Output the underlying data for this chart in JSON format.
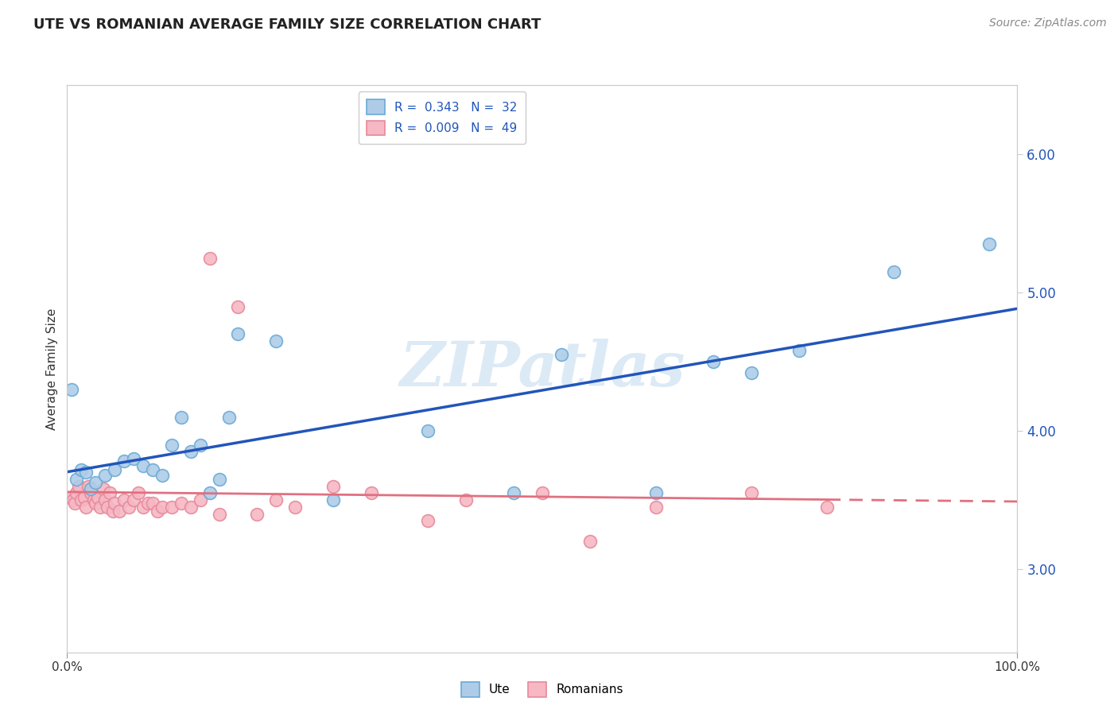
{
  "title": "UTE VS ROMANIAN AVERAGE FAMILY SIZE CORRELATION CHART",
  "source": "Source: ZipAtlas.com",
  "ylabel": "Average Family Size",
  "xlim": [
    0,
    1.0
  ],
  "ylim": [
    2.4,
    6.5
  ],
  "xticks": [
    0.0,
    1.0
  ],
  "xticklabels": [
    "0.0%",
    "100.0%"
  ],
  "yticks": [
    3.0,
    4.0,
    5.0,
    6.0
  ],
  "background_color": "#ffffff",
  "grid_color": "#cccccc",
  "watermark": "ZIPatlas",
  "ute_fill": "#aecce8",
  "ute_edge": "#6aaad4",
  "romanian_fill": "#f5b8c4",
  "romanian_edge": "#e8889a",
  "ute_line_color": "#2255bb",
  "romanian_line_color": "#e07080",
  "legend_ute_label": "R =  0.343   N =  32",
  "legend_romanian_label": "R =  0.009   N =  49",
  "legend_bottom_ute": "Ute",
  "legend_bottom_romanian": "Romanians",
  "ute_scatter_x": [
    0.005,
    0.01,
    0.015,
    0.02,
    0.025,
    0.03,
    0.04,
    0.05,
    0.06,
    0.07,
    0.08,
    0.09,
    0.1,
    0.11,
    0.12,
    0.13,
    0.14,
    0.15,
    0.16,
    0.17,
    0.18,
    0.22,
    0.28,
    0.38,
    0.47,
    0.52,
    0.62,
    0.68,
    0.72,
    0.77,
    0.87,
    0.97
  ],
  "ute_scatter_y": [
    4.3,
    3.65,
    3.72,
    3.7,
    3.58,
    3.63,
    3.68,
    3.72,
    3.78,
    3.8,
    3.75,
    3.72,
    3.68,
    3.9,
    4.1,
    3.85,
    3.9,
    3.55,
    3.65,
    4.1,
    4.7,
    4.65,
    3.5,
    4.0,
    3.55,
    4.55,
    3.55,
    4.5,
    4.42,
    4.58,
    5.15,
    5.35
  ],
  "romanian_scatter_x": [
    0.004,
    0.006,
    0.008,
    0.01,
    0.012,
    0.015,
    0.018,
    0.02,
    0.022,
    0.025,
    0.028,
    0.03,
    0.032,
    0.035,
    0.038,
    0.04,
    0.042,
    0.045,
    0.048,
    0.05,
    0.055,
    0.06,
    0.065,
    0.07,
    0.075,
    0.08,
    0.085,
    0.09,
    0.095,
    0.1,
    0.11,
    0.12,
    0.13,
    0.14,
    0.15,
    0.16,
    0.18,
    0.2,
    0.22,
    0.24,
    0.28,
    0.32,
    0.38,
    0.42,
    0.5,
    0.55,
    0.62,
    0.72,
    0.8
  ],
  "romanian_scatter_y": [
    3.52,
    3.5,
    3.48,
    3.55,
    3.6,
    3.5,
    3.52,
    3.45,
    3.6,
    3.55,
    3.5,
    3.48,
    3.52,
    3.45,
    3.58,
    3.5,
    3.45,
    3.55,
    3.42,
    3.48,
    3.42,
    3.5,
    3.45,
    3.5,
    3.55,
    3.45,
    3.48,
    3.48,
    3.42,
    3.45,
    3.45,
    3.48,
    3.45,
    3.5,
    5.25,
    3.4,
    4.9,
    3.4,
    3.5,
    3.45,
    3.6,
    3.55,
    3.35,
    3.5,
    3.55,
    3.2,
    3.45,
    3.55,
    3.45
  ]
}
